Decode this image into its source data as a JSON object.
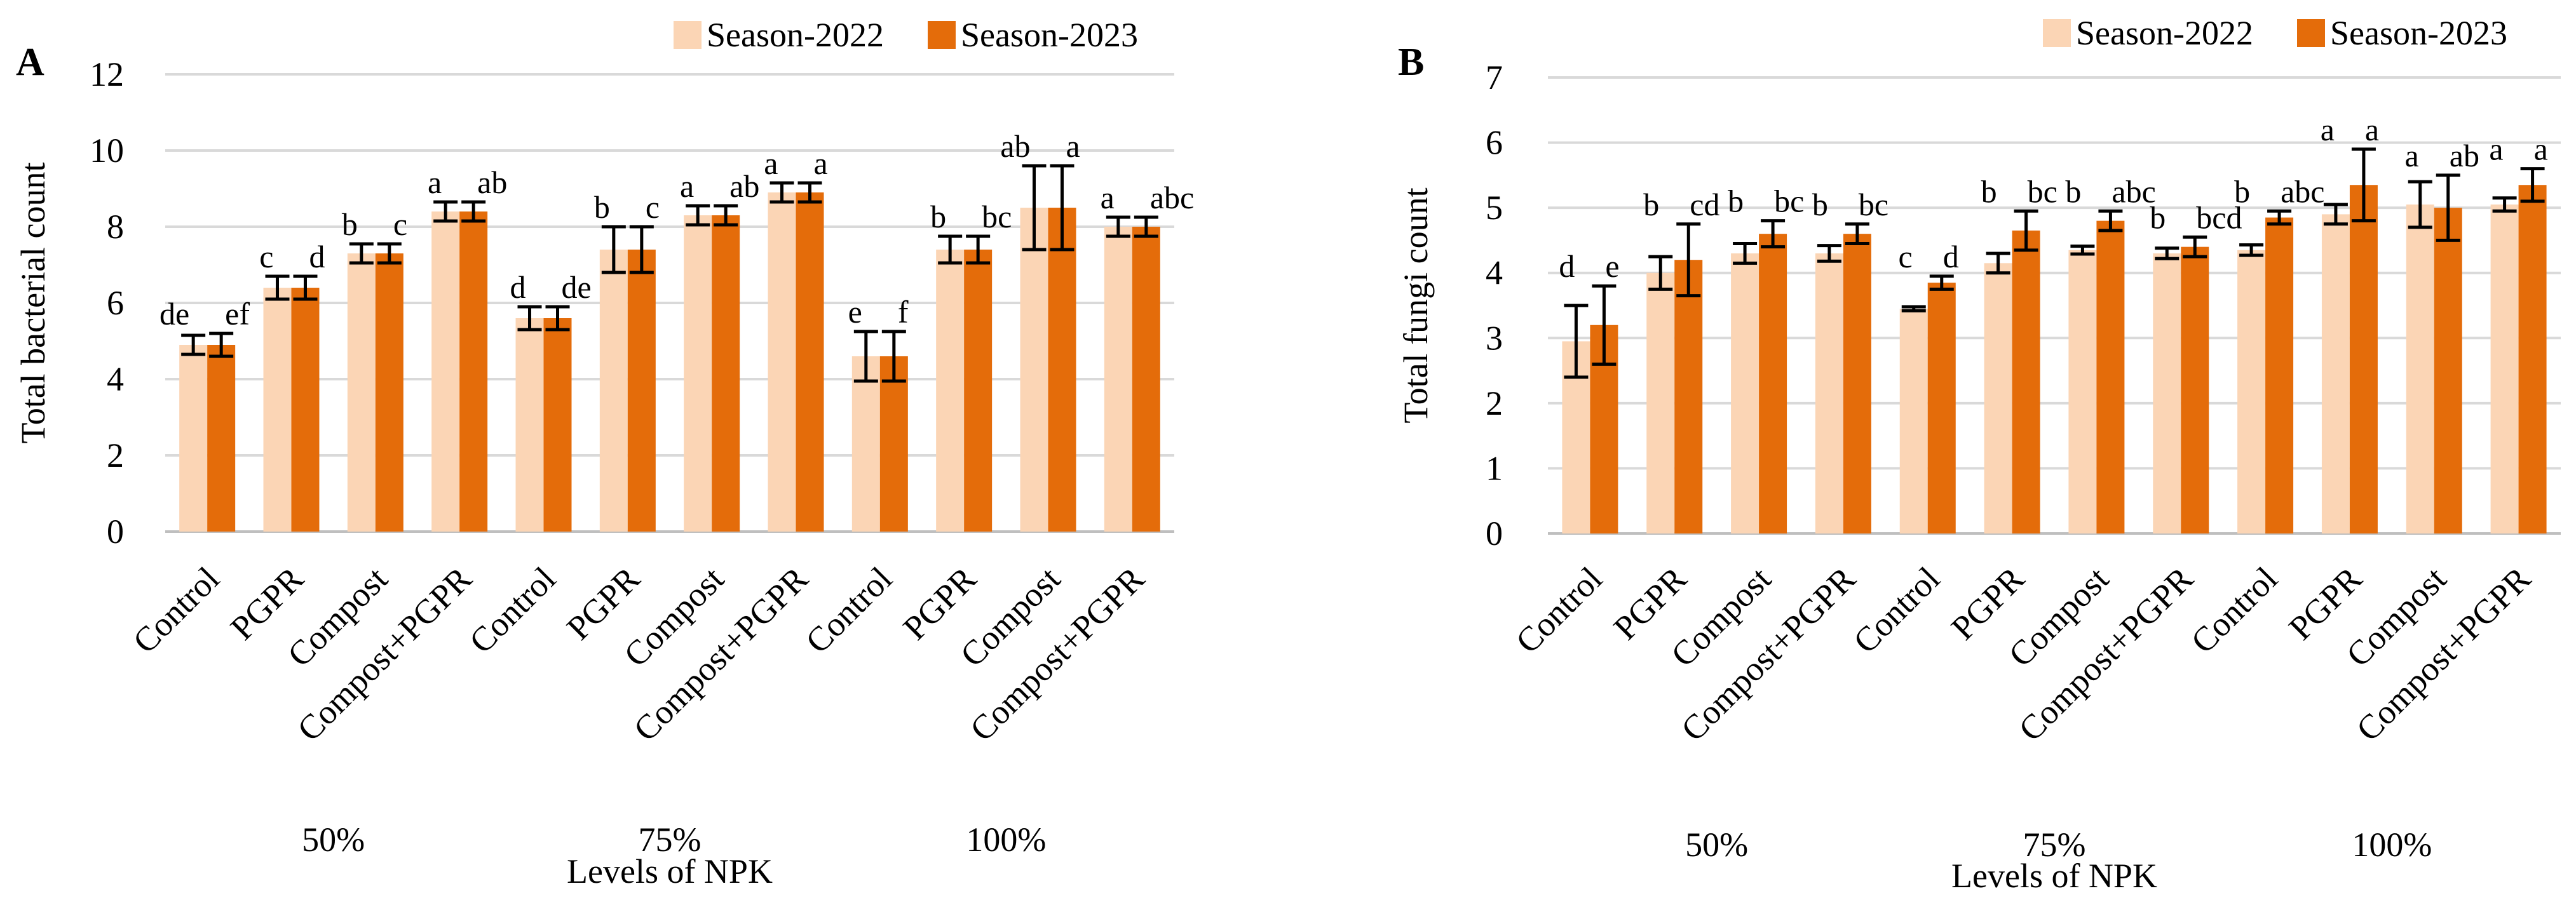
{
  "figure": {
    "colors": {
      "season2022": "#FBD5B5",
      "season2023": "#E46C0A",
      "grid": "#D9D9D9",
      "axis": "#BFBFBF",
      "error": "#000000"
    }
  },
  "chart_data": [
    {
      "type": "bar",
      "panel_label": "A",
      "ylabel": "Total bacterial count",
      "xlabel": "Levels of NPK",
      "ylim": [
        0,
        12
      ],
      "yticks": [
        0,
        2,
        4,
        6,
        8,
        10,
        12
      ],
      "grid": true,
      "legend_position": "top-right",
      "group_labels": [
        "50%",
        "75%",
        "100%"
      ],
      "categories": [
        "Control",
        "PGPR",
        "Compost",
        "Compost+PGPR",
        "Control",
        "PGPR",
        "Compost",
        "Compost+PGPR",
        "Control",
        "PGPR",
        "Compost",
        "Compost+PGPR"
      ],
      "series": [
        {
          "name": "Season-2022",
          "values": [
            4.9,
            6.4,
            7.3,
            8.4,
            5.6,
            7.4,
            8.3,
            8.9,
            4.6,
            7.4,
            8.5,
            8.0
          ],
          "errors": [
            0.25,
            0.3,
            0.25,
            0.25,
            0.3,
            0.6,
            0.25,
            0.25,
            0.65,
            0.35,
            1.1,
            0.25
          ],
          "letters": [
            "de",
            "c",
            "b",
            "a",
            "d",
            "b",
            "a",
            "a",
            "e",
            "b",
            "ab",
            "a"
          ]
        },
        {
          "name": "Season-2023",
          "values": [
            4.9,
            6.4,
            7.3,
            8.4,
            5.6,
            7.4,
            8.3,
            8.9,
            4.6,
            7.4,
            8.5,
            8.0
          ],
          "errors": [
            0.3,
            0.3,
            0.25,
            0.25,
            0.3,
            0.6,
            0.25,
            0.25,
            0.65,
            0.35,
            1.1,
            0.25
          ],
          "letters": [
            "ef",
            "d",
            "c",
            "ab",
            "de",
            "c",
            "ab",
            "a",
            "f",
            "bc",
            "a",
            "abc"
          ]
        }
      ]
    },
    {
      "type": "bar",
      "panel_label": "B",
      "ylabel": "Total fungi count",
      "xlabel": "Levels of NPK",
      "ylim": [
        0,
        7
      ],
      "yticks": [
        0,
        1,
        2,
        3,
        4,
        5,
        6,
        7
      ],
      "grid": true,
      "legend_position": "top-right",
      "group_labels": [
        "50%",
        "75%",
        "100%"
      ],
      "categories": [
        "Control",
        "PGPR",
        "Compost",
        "Compost+PGPR",
        "Control",
        "PGPR",
        "Compost",
        "Compost+PGPR",
        "Control",
        "PGPR",
        "Compost",
        "Compost+PGPR"
      ],
      "series": [
        {
          "name": "Season-2022",
          "values": [
            2.95,
            4.0,
            4.3,
            4.3,
            3.45,
            4.15,
            4.35,
            4.3,
            4.35,
            4.9,
            5.05,
            5.05
          ],
          "errors": [
            0.55,
            0.25,
            0.15,
            0.12,
            0.03,
            0.15,
            0.06,
            0.08,
            0.08,
            0.15,
            0.35,
            0.1
          ],
          "letters": [
            "d",
            "b",
            "b",
            "b",
            "c",
            "b",
            "b",
            "b",
            "b",
            "a",
            "a",
            "a"
          ]
        },
        {
          "name": "Season-2023",
          "values": [
            3.2,
            4.2,
            4.6,
            4.6,
            3.85,
            4.65,
            4.8,
            4.4,
            4.85,
            5.35,
            5.0,
            5.35
          ],
          "errors": [
            0.6,
            0.55,
            0.2,
            0.15,
            0.1,
            0.3,
            0.15,
            0.15,
            0.1,
            0.55,
            0.5,
            0.25
          ],
          "letters": [
            "e",
            "cd",
            "bc",
            "bc",
            "d",
            "bc",
            "abc",
            "bcd",
            "abc",
            "a",
            "ab",
            "a"
          ]
        }
      ]
    }
  ]
}
